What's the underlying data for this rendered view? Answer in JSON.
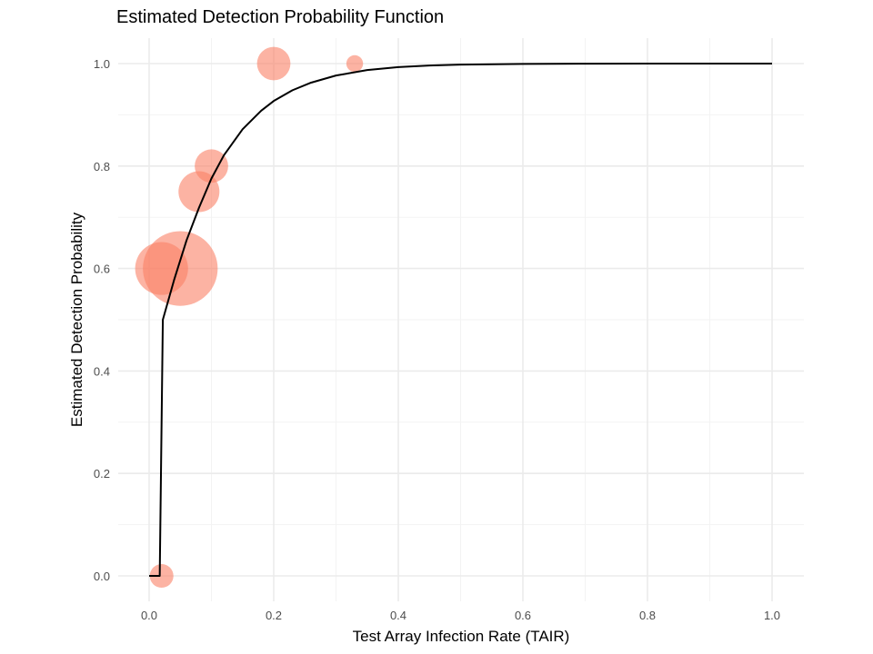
{
  "chart_data": {
    "type": "scatter",
    "title": "Estimated Detection Probability Function",
    "xlabel": "Test Array Infection Rate (TAIR)",
    "ylabel": "Estimated Detection Probability",
    "xlim": [
      0.0,
      1.0
    ],
    "ylim": [
      0.0,
      1.0
    ],
    "x_ticks": [
      "0.0",
      "0.2",
      "0.4",
      "0.6",
      "0.8",
      "1.0"
    ],
    "y_ticks": [
      "0.0",
      "0.2",
      "0.4",
      "0.6",
      "0.8",
      "1.0"
    ],
    "grid": true,
    "point_color": "#fa8066",
    "curve_color": "#000000",
    "points": [
      {
        "x": 0.02,
        "y": 0.0,
        "size": 1
      },
      {
        "x": 0.02,
        "y": 0.6,
        "size": 5
      },
      {
        "x": 0.05,
        "y": 0.6,
        "size": 10
      },
      {
        "x": 0.08,
        "y": 0.75,
        "size": 3
      },
      {
        "x": 0.1,
        "y": 0.8,
        "size": 2
      },
      {
        "x": 0.2,
        "y": 1.0,
        "size": 2
      },
      {
        "x": 0.33,
        "y": 1.0,
        "size": 0.5
      }
    ],
    "curve": [
      {
        "x": 0.0,
        "y": 0.0
      },
      {
        "x": 0.017,
        "y": 0.0
      },
      {
        "x": 0.022,
        "y": 0.5
      },
      {
        "x": 0.04,
        "y": 0.5774
      },
      {
        "x": 0.06,
        "y": 0.6548
      },
      {
        "x": 0.08,
        "y": 0.7185
      },
      {
        "x": 0.1,
        "y": 0.7757
      },
      {
        "x": 0.12,
        "y": 0.821
      },
      {
        "x": 0.15,
        "y": 0.8718
      },
      {
        "x": 0.18,
        "y": 0.9082
      },
      {
        "x": 0.2,
        "y": 0.927
      },
      {
        "x": 0.23,
        "y": 0.9479
      },
      {
        "x": 0.26,
        "y": 0.9628
      },
      {
        "x": 0.3,
        "y": 0.9767
      },
      {
        "x": 0.35,
        "y": 0.9873
      },
      {
        "x": 0.4,
        "y": 0.9931
      },
      {
        "x": 0.45,
        "y": 0.9962
      },
      {
        "x": 0.5,
        "y": 0.998
      },
      {
        "x": 0.6,
        "y": 0.9994
      },
      {
        "x": 0.7,
        "y": 0.9998
      },
      {
        "x": 0.8,
        "y": 1.0
      },
      {
        "x": 1.0,
        "y": 1.0
      }
    ]
  }
}
